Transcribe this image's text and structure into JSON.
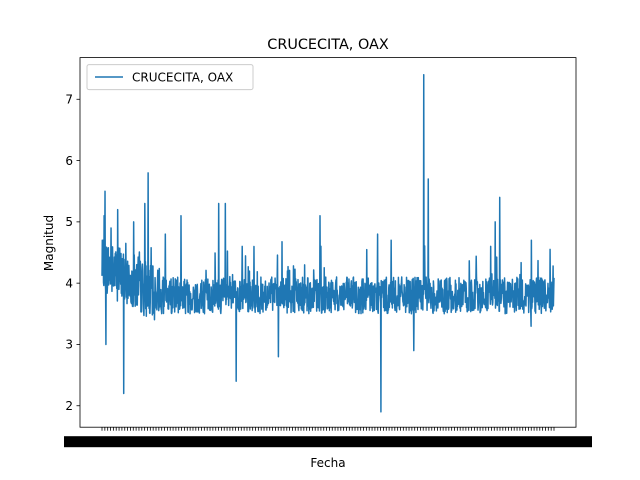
{
  "chart_data": {
    "type": "line",
    "title": "CRUCECITA, OAX",
    "xlabel": "Fecha",
    "ylabel": "Magnitud",
    "ylim": [
      1.65,
      7.68
    ],
    "yticks": [
      2,
      3,
      4,
      5,
      6,
      7
    ],
    "ytick_labels": [
      "2",
      "3",
      "4",
      "5",
      "6",
      "7"
    ],
    "x_tick_labels_legible": false,
    "legend": {
      "placement": "top-left",
      "entries": [
        "CRUCECITA, OAX"
      ]
    },
    "grid": false,
    "series": [
      {
        "name": "CRUCECITA, OAX",
        "color": "#1f77b4",
        "n_points": 1500,
        "baseline_approx": 3.8,
        "range_observed": [
          1.9,
          7.4
        ],
        "notable_points": [
          {
            "position": 0.005,
            "value": 5.1
          },
          {
            "position": 0.007,
            "value": 5.5
          },
          {
            "position": 0.009,
            "value": 3.0
          },
          {
            "position": 0.02,
            "value": 4.9
          },
          {
            "position": 0.035,
            "value": 5.2
          },
          {
            "position": 0.048,
            "value": 2.2
          },
          {
            "position": 0.07,
            "value": 5.0
          },
          {
            "position": 0.095,
            "value": 5.3
          },
          {
            "position": 0.102,
            "value": 5.8
          },
          {
            "position": 0.14,
            "value": 4.8
          },
          {
            "position": 0.175,
            "value": 5.1
          },
          {
            "position": 0.258,
            "value": 5.3
          },
          {
            "position": 0.273,
            "value": 5.3
          },
          {
            "position": 0.297,
            "value": 2.4
          },
          {
            "position": 0.31,
            "value": 4.6
          },
          {
            "position": 0.39,
            "value": 2.8
          },
          {
            "position": 0.482,
            "value": 5.1
          },
          {
            "position": 0.61,
            "value": 4.8
          },
          {
            "position": 0.617,
            "value": 1.9
          },
          {
            "position": 0.64,
            "value": 4.7
          },
          {
            "position": 0.69,
            "value": 2.9
          },
          {
            "position": 0.712,
            "value": 7.4
          },
          {
            "position": 0.722,
            "value": 5.7
          },
          {
            "position": 0.86,
            "value": 4.6
          },
          {
            "position": 0.87,
            "value": 5.0
          },
          {
            "position": 0.88,
            "value": 5.4
          },
          {
            "position": 0.95,
            "value": 4.7
          }
        ]
      }
    ]
  }
}
